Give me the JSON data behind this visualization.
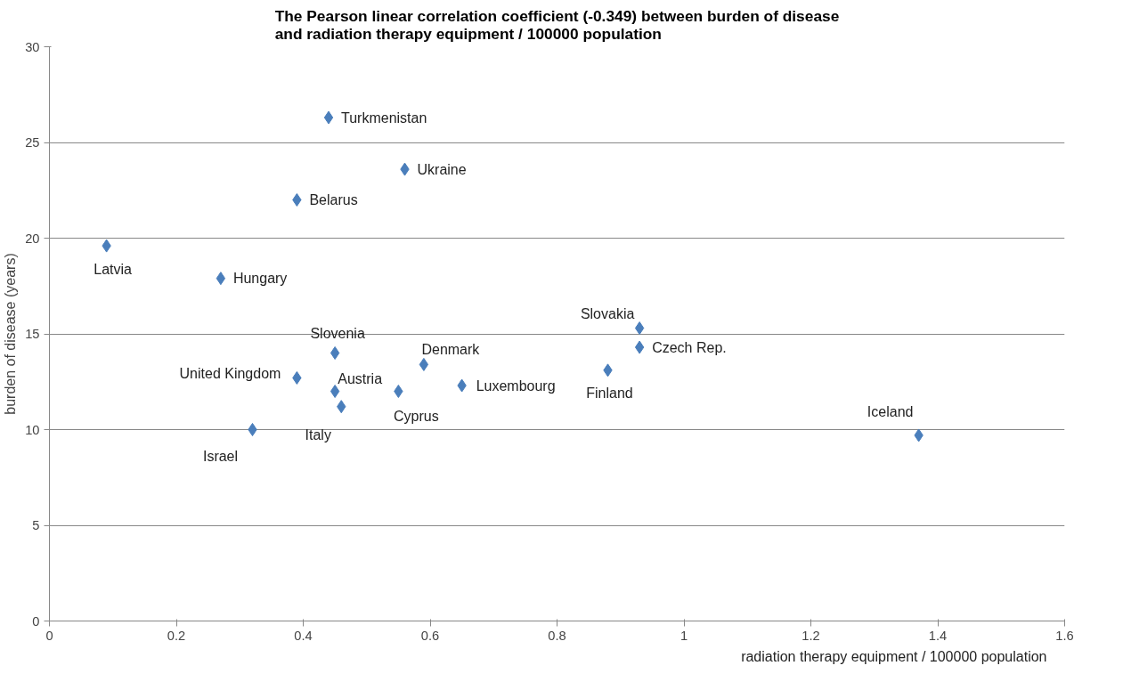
{
  "chart_data": {
    "type": "scatter",
    "title": "The Pearson linear correlation coefficient (-0.349) between burden of disease\nand radiation therapy equipment / 100000 population",
    "xlabel": "radiation therapy equipment / 100000 population",
    "ylabel": "burden of disease (years)",
    "x": [
      0.44,
      0.56,
      0.39,
      0.09,
      0.27,
      0.45,
      0.59,
      0.39,
      0.45,
      0.46,
      0.55,
      0.65,
      0.32,
      0.93,
      0.93,
      0.88,
      1.37
    ],
    "series": [
      {
        "color": "#4a7ebb",
        "values": [
          26.3,
          23.6,
          22.0,
          19.6,
          17.9,
          14.0,
          13.4,
          12.7,
          12.0,
          11.2,
          12.0,
          12.3,
          10.0,
          15.3,
          14.3,
          13.1,
          9.7
        ]
      }
    ],
    "annotations": [
      {
        "text": "Turkmenistan",
        "x": 0.44,
        "y": 26.3
      },
      {
        "text": "Ukraine",
        "x": 0.56,
        "y": 23.6
      },
      {
        "text": "Belarus",
        "x": 0.39,
        "y": 22.0
      },
      {
        "text": "Latvia",
        "x": 0.09,
        "y": 19.6
      },
      {
        "text": "Hungary",
        "x": 0.27,
        "y": 17.9
      },
      {
        "text": "Slovenia",
        "x": 0.45,
        "y": 14.0
      },
      {
        "text": "Denmark",
        "x": 0.59,
        "y": 13.4
      },
      {
        "text": "United Kingdom",
        "x": 0.39,
        "y": 12.7
      },
      {
        "text": "Austria",
        "x": 0.45,
        "y": 12.0
      },
      {
        "text": "Italy",
        "x": 0.46,
        "y": 11.2
      },
      {
        "text": "Cyprus",
        "x": 0.55,
        "y": 12.0
      },
      {
        "text": "Luxembourg",
        "x": 0.65,
        "y": 12.3
      },
      {
        "text": "Israel",
        "x": 0.32,
        "y": 10.0
      },
      {
        "text": "Slovakia",
        "x": 0.93,
        "y": 15.3
      },
      {
        "text": "Czech Rep.",
        "x": 0.93,
        "y": 14.3
      },
      {
        "text": "Finland",
        "x": 0.88,
        "y": 13.1
      },
      {
        "text": "Iceland",
        "x": 1.37,
        "y": 9.7
      }
    ],
    "xlim": [
      0,
      1.6
    ],
    "xticks": [
      0,
      0.2,
      0.4,
      0.6,
      0.8,
      1,
      1.2,
      1.4,
      1.6
    ],
    "ylim": [
      0,
      30
    ],
    "yticks": [
      0,
      5,
      10,
      15,
      20,
      25,
      30
    ],
    "grid": "y",
    "marker": "diamond"
  }
}
